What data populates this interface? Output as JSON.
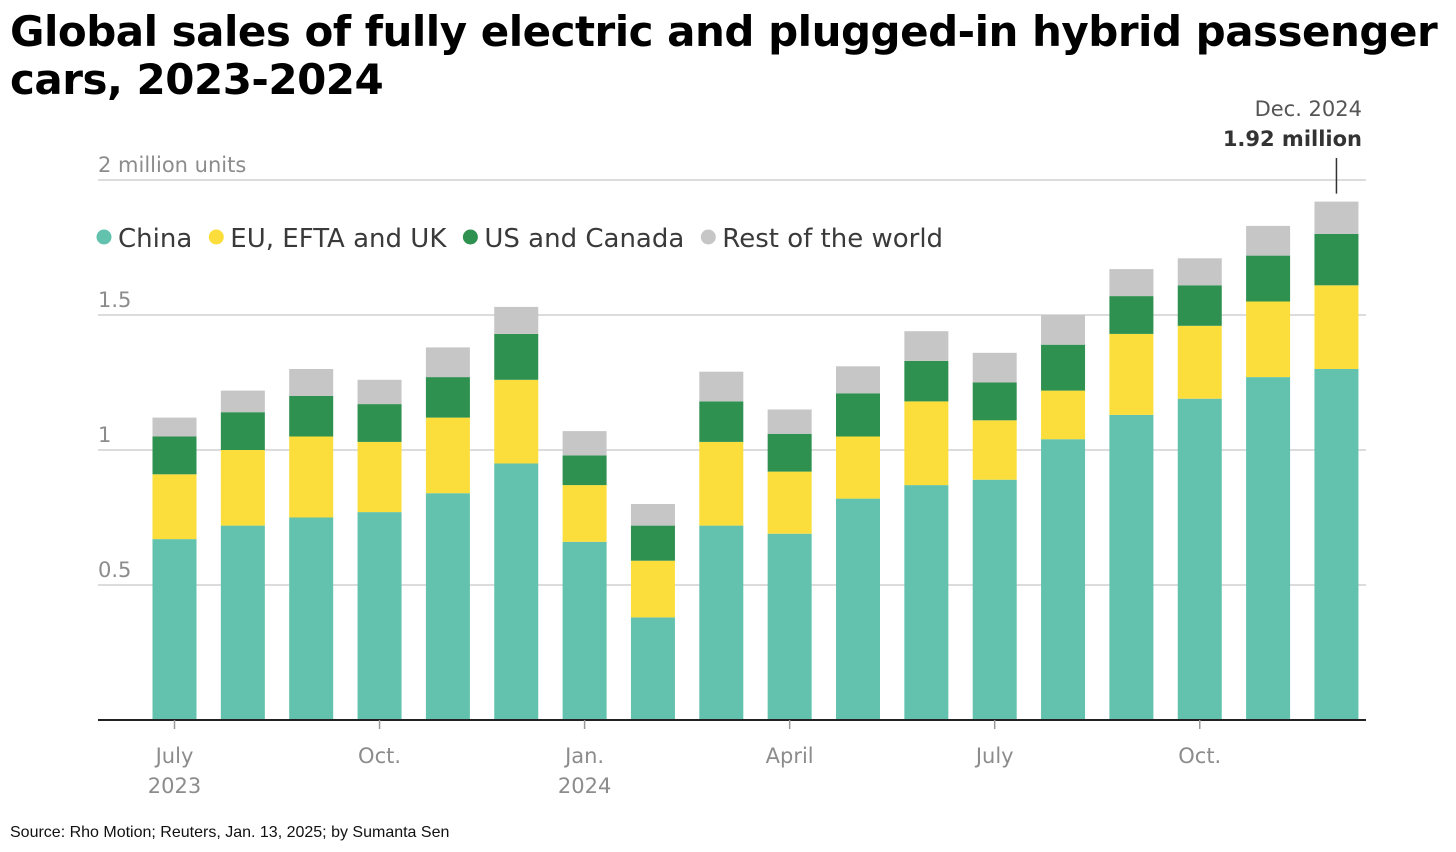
{
  "chart_data": {
    "type": "bar",
    "stacked": true,
    "title": "Global sales of fully electric and plugged-in hybrid passenger cars, 2023-2024",
    "ylabel": "2 million units",
    "ylim": [
      0,
      2
    ],
    "y_ticks": [
      {
        "value": 0.5,
        "label": "0.5"
      },
      {
        "value": 1,
        "label": "1"
      },
      {
        "value": 1.5,
        "label": "1.5"
      },
      {
        "value": 2,
        "label": "2 million units"
      }
    ],
    "categories": [
      "Jul 2023",
      "Aug 2023",
      "Sep 2023",
      "Oct 2023",
      "Nov 2023",
      "Dec 2023",
      "Jan 2024",
      "Feb 2024",
      "Mar 2024",
      "Apr 2024",
      "May 2024",
      "Jun 2024",
      "Jul 2024",
      "Aug 2024",
      "Sep 2024",
      "Oct 2024",
      "Nov 2024",
      "Dec 2024"
    ],
    "x_labels": [
      {
        "index": 0,
        "lines": [
          "July",
          "2023"
        ]
      },
      {
        "index": 3,
        "lines": [
          "Oct."
        ]
      },
      {
        "index": 6,
        "lines": [
          "Jan.",
          "2024"
        ]
      },
      {
        "index": 9,
        "lines": [
          "April"
        ]
      },
      {
        "index": 12,
        "lines": [
          "July"
        ]
      },
      {
        "index": 15,
        "lines": [
          "Oct."
        ]
      }
    ],
    "series": [
      {
        "name": "China",
        "color": "#62c2ae",
        "values": [
          0.67,
          0.72,
          0.75,
          0.77,
          0.84,
          0.95,
          0.66,
          0.38,
          0.72,
          0.69,
          0.82,
          0.87,
          0.89,
          1.04,
          1.13,
          1.19,
          1.27,
          1.3
        ]
      },
      {
        "name": "EU, EFTA and UK",
        "color": "#fbde3c",
        "values": [
          0.24,
          0.28,
          0.3,
          0.26,
          0.28,
          0.31,
          0.21,
          0.21,
          0.31,
          0.23,
          0.23,
          0.31,
          0.22,
          0.18,
          0.3,
          0.27,
          0.28,
          0.31
        ]
      },
      {
        "name": "US and Canada",
        "color": "#2e9150",
        "values": [
          0.14,
          0.14,
          0.15,
          0.14,
          0.15,
          0.17,
          0.11,
          0.13,
          0.15,
          0.14,
          0.16,
          0.15,
          0.14,
          0.17,
          0.14,
          0.15,
          0.17,
          0.19
        ]
      },
      {
        "name": "Rest of the world",
        "color": "#c6c6c6",
        "values": [
          0.07,
          0.08,
          0.1,
          0.09,
          0.11,
          0.1,
          0.09,
          0.08,
          0.11,
          0.09,
          0.1,
          0.11,
          0.11,
          0.11,
          0.1,
          0.1,
          0.11,
          0.12
        ]
      }
    ],
    "annotation": {
      "index": 17,
      "label": "Dec. 2024",
      "value_label": "1.92 million"
    },
    "legend": "top-left"
  },
  "source": "Source: Rho Motion; Reuters, Jan. 13, 2025; by Sumanta Sen",
  "colors": {
    "grid": "#d0d0d0",
    "axis": "#222222",
    "tick_text": "#8c8c8c"
  }
}
